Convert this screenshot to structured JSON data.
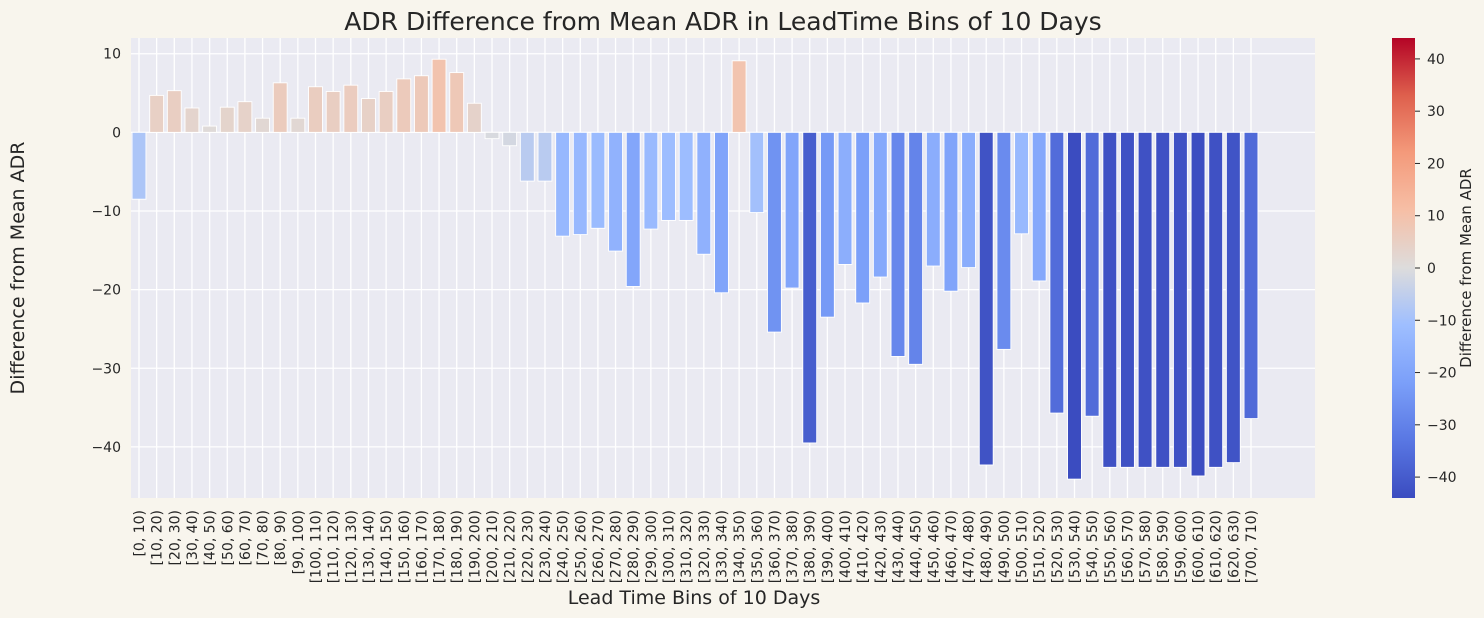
{
  "chart_data": {
    "type": "bar",
    "title": "ADR Difference from Mean ADR in LeadTime Bins of 10 Days",
    "xlabel": "Lead Time Bins of 10 Days",
    "ylabel": "Difference from Mean ADR",
    "ylim": [
      -46.5,
      12
    ],
    "yticks": [
      10,
      0,
      -10,
      -20,
      -30,
      -40
    ],
    "grid": true,
    "colorbar": {
      "label": "Difference from Mean ADR",
      "range": [
        -44,
        44
      ],
      "ticks": [
        40,
        30,
        20,
        10,
        0,
        -10,
        -20,
        -30,
        -40
      ],
      "colormap": "coolwarm"
    },
    "categories": [
      "[0, 10)",
      "[10, 20)",
      "[20, 30)",
      "[30, 40)",
      "[40, 50)",
      "[50, 60)",
      "[60, 70)",
      "[70, 80)",
      "[80, 90)",
      "[90, 100)",
      "[100, 110)",
      "[110, 120)",
      "[120, 130)",
      "[130, 140)",
      "[140, 150)",
      "[150, 160)",
      "[160, 170)",
      "[170, 180)",
      "[180, 190)",
      "[190, 200)",
      "[200, 210)",
      "[210, 220)",
      "[220, 230)",
      "[230, 240)",
      "[240, 250)",
      "[250, 260)",
      "[260, 270)",
      "[270, 280)",
      "[280, 290)",
      "[290, 300)",
      "[300, 310)",
      "[310, 320)",
      "[320, 330)",
      "[330, 340)",
      "[340, 350)",
      "[350, 360)",
      "[360, 370)",
      "[370, 380)",
      "[380, 390)",
      "[390, 400)",
      "[400, 410)",
      "[410, 420)",
      "[420, 430)",
      "[430, 440)",
      "[440, 450)",
      "[450, 460)",
      "[460, 470)",
      "[470, 480)",
      "[480, 490)",
      "[490, 500)",
      "[500, 510)",
      "[510, 520)",
      "[520, 530)",
      "[530, 540)",
      "[540, 550)",
      "[550, 560)",
      "[560, 570)",
      "[570, 580)",
      "[580, 590)",
      "[590, 600)",
      "[600, 610)",
      "[610, 620)",
      "[620, 630)",
      "[700, 710)"
    ],
    "values": [
      -8.5,
      4.7,
      5.3,
      3.1,
      0.8,
      3.2,
      3.9,
      1.8,
      6.3,
      1.8,
      5.8,
      5.2,
      6.0,
      4.3,
      5.2,
      6.8,
      7.2,
      9.3,
      7.6,
      3.7,
      -0.8,
      -1.7,
      -6.2,
      -6.2,
      -13.2,
      -13.0,
      -12.2,
      -15.1,
      -19.6,
      -12.3,
      -11.2,
      -11.2,
      -15.5,
      -20.4,
      9.1,
      -10.2,
      -25.4,
      -19.8,
      -39.5,
      -23.5,
      -16.8,
      -21.7,
      -18.4,
      -28.5,
      -29.5,
      -17.0,
      -20.2,
      -17.2,
      -42.3,
      -27.6,
      -12.9,
      -18.9,
      -35.7,
      -44.1,
      -36.1,
      -42.6,
      -42.6,
      -42.6,
      -42.6,
      -42.6,
      -43.7,
      -42.6,
      -42.0,
      -36.4
    ]
  }
}
